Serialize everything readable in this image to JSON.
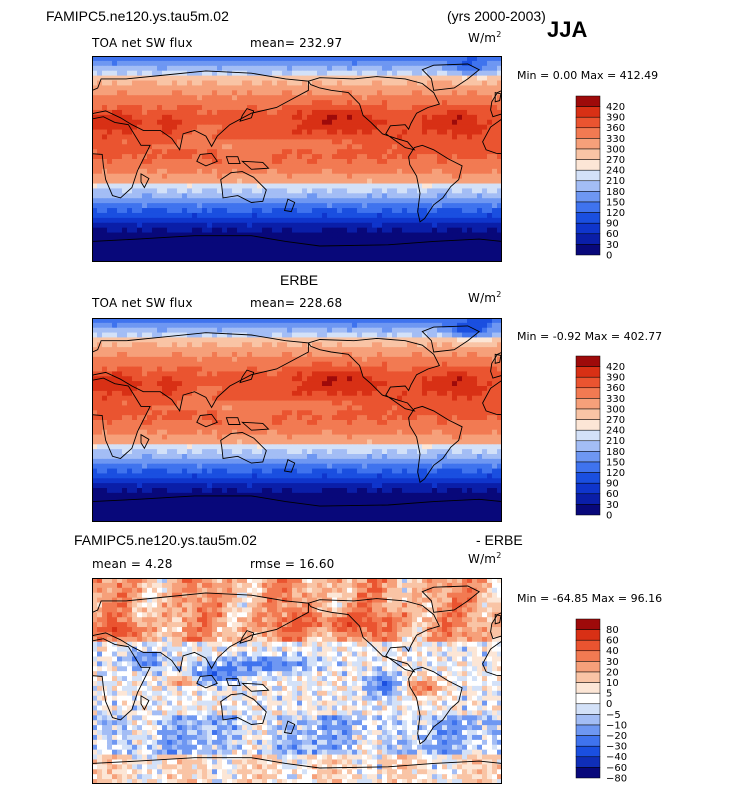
{
  "header": {
    "case_name": "FAMIPC5.ne120.ys.tau5m.02",
    "years": "(yrs 2000-2003)",
    "season": "JJA"
  },
  "panels": [
    {
      "id": "model",
      "heading": "",
      "left_label": "TOA net SW flux",
      "mid_label": "mean= 232.97",
      "units": "W/m",
      "units_sup": "2",
      "minmax": "Min =   0.00 Max = 412.49",
      "colorbar_levels": [
        "420",
        "390",
        "360",
        "330",
        "300",
        "270",
        "240",
        "210",
        "180",
        "150",
        "120",
        "90",
        "60",
        "30",
        "0"
      ]
    },
    {
      "id": "obs",
      "heading": "ERBE",
      "left_label": "TOA net SW flux",
      "mid_label": "mean= 228.68",
      "units": "W/m",
      "units_sup": "2",
      "minmax": "Min =  -0.92 Max = 402.77",
      "colorbar_levels": [
        "420",
        "390",
        "360",
        "330",
        "300",
        "270",
        "240",
        "210",
        "180",
        "150",
        "120",
        "90",
        "60",
        "30",
        "0"
      ]
    },
    {
      "id": "diff",
      "heading_left": "FAMIPC5.ne120.ys.tau5m.02",
      "heading_right": "- ERBE",
      "left_label": "mean =   4.28",
      "mid_label": "rmse =  16.60",
      "units": "W/m",
      "units_sup": "2",
      "minmax": "Min = -64.85 Max =  96.16",
      "colorbar_levels": [
        "80",
        "60",
        "40",
        "30",
        "20",
        "10",
        "5",
        "0",
        "−5",
        "−10",
        "−20",
        "−30",
        "−40",
        "−60",
        "−80"
      ]
    }
  ],
  "chart_data": [
    {
      "type": "heatmap",
      "title": "TOA net SW flux",
      "subtitle": "mean= 232.97",
      "units": "W/m2",
      "min": 0.0,
      "max": 412.49,
      "mean": 232.97,
      "colorbar_levels": [
        0,
        30,
        60,
        90,
        120,
        150,
        180,
        210,
        240,
        270,
        300,
        330,
        360,
        390,
        420
      ]
    },
    {
      "type": "heatmap",
      "title": "ERBE TOA net SW flux",
      "subtitle": "mean= 228.68",
      "units": "W/m2",
      "min": -0.92,
      "max": 402.77,
      "mean": 228.68,
      "colorbar_levels": [
        0,
        30,
        60,
        90,
        120,
        150,
        180,
        210,
        240,
        270,
        300,
        330,
        360,
        390,
        420
      ]
    },
    {
      "type": "heatmap",
      "title": "FAMIPC5.ne120.ys.tau5m.02 - ERBE",
      "subtitle": "mean = 4.28, rmse = 16.60",
      "units": "W/m2",
      "min": -64.85,
      "max": 96.16,
      "mean": 4.28,
      "rmse": 16.6,
      "colorbar_levels": [
        -80,
        -60,
        -40,
        -30,
        -20,
        -10,
        -5,
        0,
        5,
        10,
        20,
        30,
        40,
        60,
        80
      ]
    }
  ],
  "colors": {
    "abs_scale": [
      "#08087a",
      "#0a1ea8",
      "#0f35cc",
      "#1a4fe0",
      "#3f73ee",
      "#6e97f2",
      "#a3bdf5",
      "#d3e1f8",
      "#fce6d6",
      "#f9c4a5",
      "#f6a07a",
      "#f27a52",
      "#ea5430",
      "#d83015",
      "#9e0a0a"
    ],
    "diff_scale": [
      "#08087a",
      "#0f2eb8",
      "#1a4fe0",
      "#3f73ee",
      "#6e97f2",
      "#a3bdf5",
      "#d3e1f8",
      "#ffffff",
      "#fce6d6",
      "#f9c4a5",
      "#f6a07a",
      "#f27a52",
      "#ea5430",
      "#d83015",
      "#9e0a0a"
    ]
  }
}
